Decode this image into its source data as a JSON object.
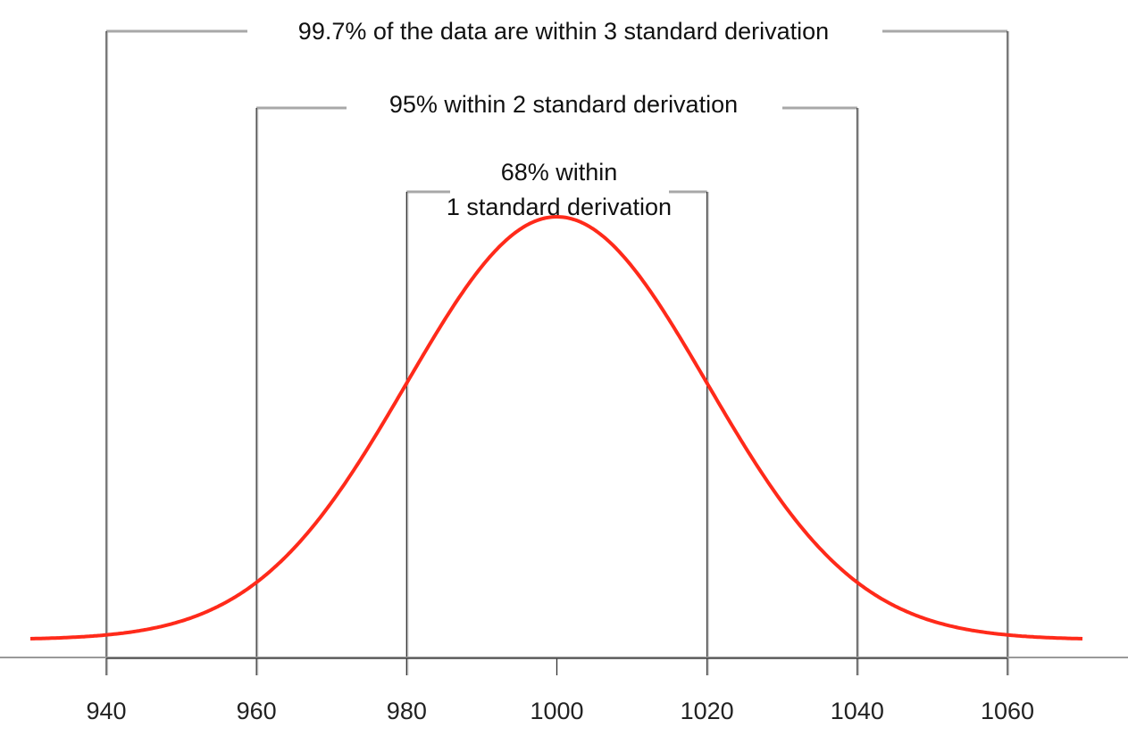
{
  "chart_data": {
    "type": "line",
    "title": "",
    "xlabel": "",
    "ylabel": "",
    "distribution": "normal",
    "mean": 1000,
    "std_dev": 20,
    "xlim": [
      930,
      1070
    ],
    "x_ticks": [
      940,
      960,
      980,
      1000,
      1020,
      1040,
      1060
    ],
    "x_tick_labels": [
      "940",
      "960",
      "980",
      "1000",
      "1020",
      "1040",
      "1060"
    ],
    "series": [
      {
        "name": "normal curve",
        "color": "#ff2a1a"
      }
    ],
    "interval_lines": [
      940,
      960,
      980,
      1020,
      1040,
      1060
    ],
    "brackets": [
      {
        "id": "sd3",
        "from": 940,
        "to": 1060,
        "lines": [
          "99.7% of the data are within 3 standard derivation"
        ]
      },
      {
        "id": "sd2",
        "from": 960,
        "to": 1040,
        "lines": [
          "95% within 2 standard derivation"
        ]
      },
      {
        "id": "sd1",
        "from": 980,
        "to": 1020,
        "lines": [
          "68% within",
          "1 standard derivation"
        ]
      }
    ],
    "grid": false,
    "legend": "none"
  },
  "colors": {
    "curve": "#ff2a1a",
    "bracket": "#a8a8a8",
    "vline": "#333333",
    "axis": "#999999"
  }
}
